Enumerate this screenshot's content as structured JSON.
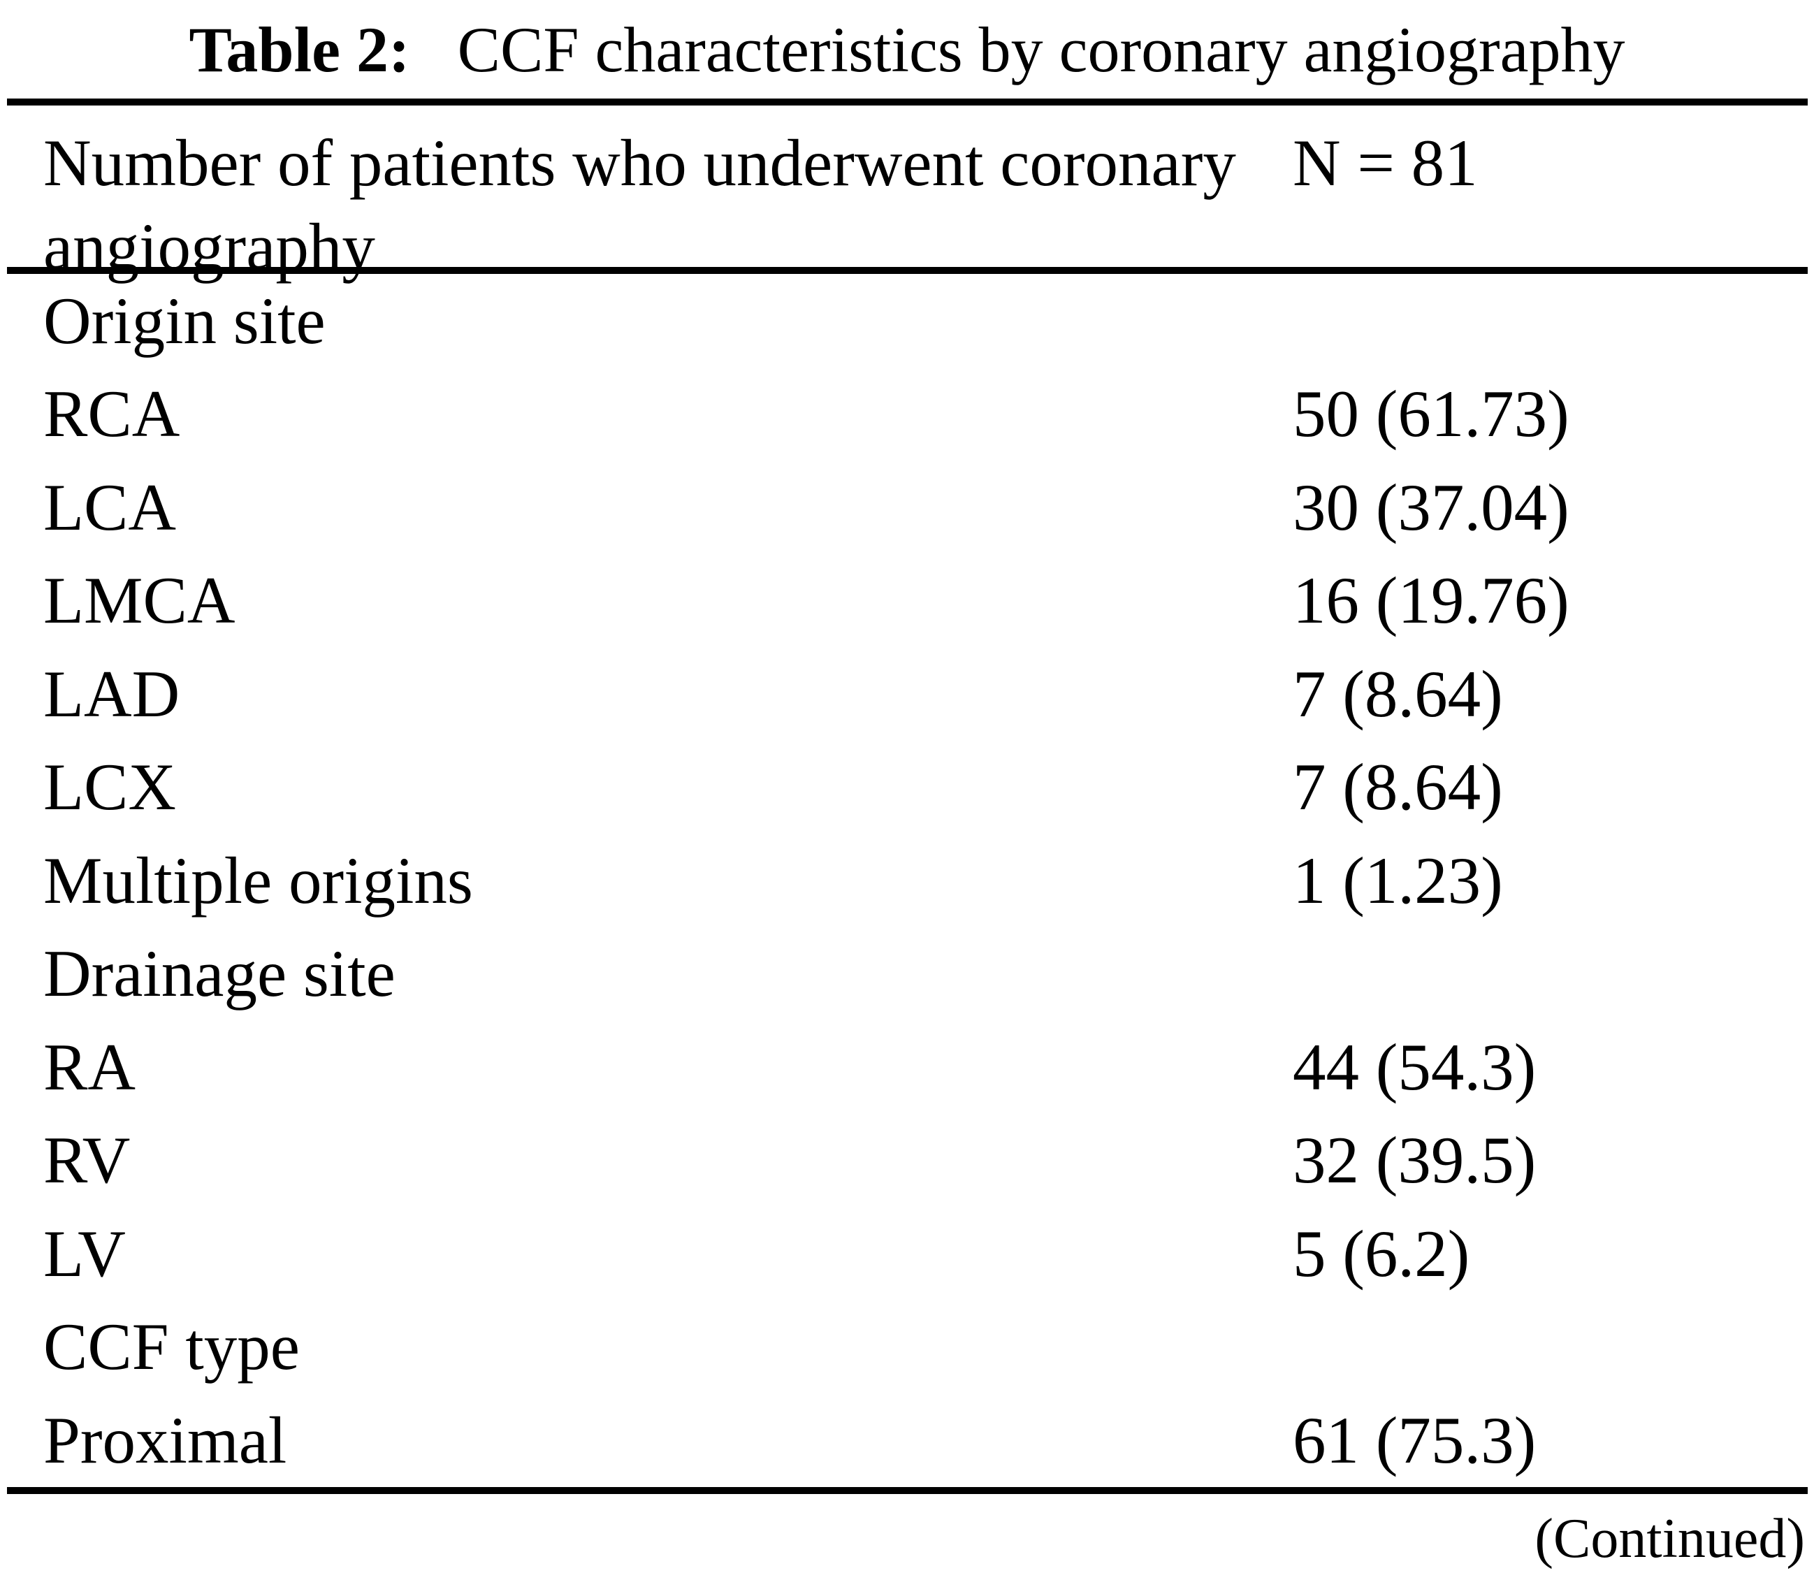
{
  "caption": {
    "label": "Table 2:",
    "text": "CCF characteristics by coronary angiography"
  },
  "header": {
    "label": "Number of patients who underwent coronary angiography",
    "value": "N = 81"
  },
  "rows": [
    {
      "label": "Origin site",
      "value": ""
    },
    {
      "label": "RCA",
      "value": "50 (61.73)"
    },
    {
      "label": "LCA",
      "value": "30 (37.04)"
    },
    {
      "label": "LMCA",
      "value": "16 (19.76)"
    },
    {
      "label": "LAD",
      "value": "7 (8.64)"
    },
    {
      "label": "LCX",
      "value": "7 (8.64)"
    },
    {
      "label": "Multiple origins",
      "value": "1 (1.23)"
    },
    {
      "label": "Drainage site",
      "value": ""
    },
    {
      "label": "RA",
      "value": "44 (54.3)"
    },
    {
      "label": "RV",
      "value": "32 (39.5)"
    },
    {
      "label": "LV",
      "value": "5 (6.2)"
    },
    {
      "label": "CCF type",
      "value": ""
    },
    {
      "label": "Proximal",
      "value": "61 (75.3)"
    }
  ],
  "footer": {
    "note": "(Continued)"
  },
  "colors": {
    "background": "#ffffff",
    "text": "#000000",
    "rule": "#000000"
  }
}
